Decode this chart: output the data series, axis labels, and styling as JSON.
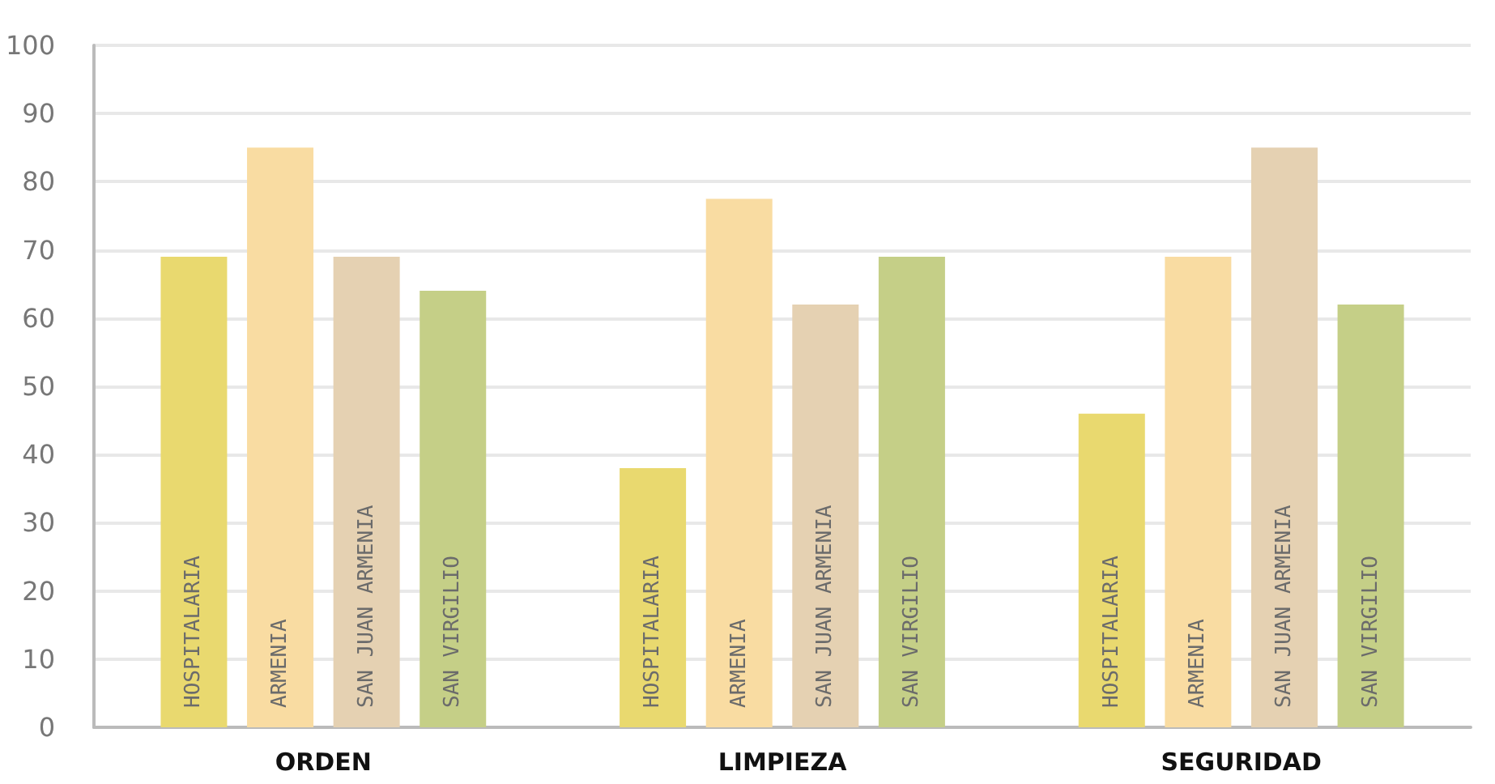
{
  "chart_data": {
    "type": "bar",
    "categories": [
      "ORDEN",
      "LIMPIEZA",
      "SEGURIDAD"
    ],
    "series": [
      {
        "name": "HOSPITALARIA",
        "color": "#e9d96f",
        "values": [
          69,
          38,
          46
        ]
      },
      {
        "name": "ARMENIA",
        "color": "#f9dca2",
        "values": [
          85,
          77.5,
          69
        ]
      },
      {
        "name": "SAN JUAN ARMENIA",
        "color": "#e5d1b2",
        "values": [
          69,
          62,
          85
        ]
      },
      {
        "name": "SAN VIRGILIO",
        "color": "#c5cf87",
        "values": [
          64,
          69,
          62
        ]
      }
    ],
    "ylim": [
      0,
      100
    ],
    "yticks": [
      0,
      10,
      20,
      30,
      40,
      50,
      60,
      70,
      80,
      90,
      100
    ],
    "grid": "y",
    "legend": false
  }
}
